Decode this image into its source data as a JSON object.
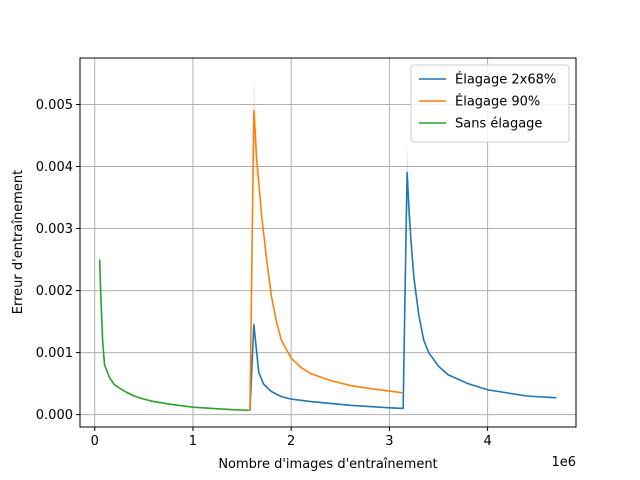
{
  "chart_data": {
    "type": "line",
    "title": "",
    "xlabel": "Nombre d'images d'entraînement",
    "ylabel": "Erreur d'entraînement",
    "x_offset_label": "1e6",
    "xlim": [
      -0.15,
      4.9
    ],
    "ylim": [
      -0.0002,
      0.00575
    ],
    "x_ticks": [
      0,
      1,
      2,
      3,
      4
    ],
    "x_tick_labels": [
      "0",
      "1",
      "2",
      "3",
      "4"
    ],
    "y_ticks": [
      0.0,
      0.001,
      0.002,
      0.003,
      0.004,
      0.005
    ],
    "y_tick_labels": [
      "0.000",
      "0.001",
      "0.002",
      "0.003",
      "0.004",
      "0.005"
    ],
    "grid": true,
    "legend_position": "top-right",
    "series": [
      {
        "name": "Élagage 2x68%",
        "color": "#1f77b4",
        "x": [
          1.58,
          1.62,
          1.67,
          1.72,
          1.8,
          1.9,
          2.0,
          2.2,
          2.4,
          2.6,
          2.8,
          3.0,
          3.14,
          3.18,
          3.2,
          3.22,
          3.25,
          3.3,
          3.35,
          3.4,
          3.5,
          3.6,
          3.8,
          4.0,
          4.2,
          4.4,
          4.6,
          4.7
        ],
        "y": [
          6e-05,
          0.00145,
          0.00068,
          0.00049,
          0.00037,
          0.00029,
          0.00025,
          0.00021,
          0.00018,
          0.00015,
          0.00013,
          0.00011,
          0.0001,
          0.0039,
          0.0033,
          0.0028,
          0.0022,
          0.0016,
          0.0012,
          0.001,
          0.00078,
          0.00064,
          0.0005,
          0.0004,
          0.00035,
          0.0003,
          0.00028,
          0.00027
        ]
      },
      {
        "name": "Élagage 90%",
        "color": "#ff7f0e",
        "x": [
          1.58,
          1.62,
          1.65,
          1.7,
          1.75,
          1.8,
          1.85,
          1.9,
          2.0,
          2.1,
          2.2,
          2.4,
          2.6,
          2.8,
          3.0,
          3.14
        ],
        "y": [
          6e-05,
          0.0049,
          0.0041,
          0.0032,
          0.0025,
          0.0019,
          0.0015,
          0.0012,
          0.00091,
          0.00076,
          0.00066,
          0.00055,
          0.00047,
          0.00042,
          0.00038,
          0.00035
        ]
      },
      {
        "name": "Sans élagage",
        "color": "#2ca02c",
        "x": [
          0.05,
          0.06,
          0.08,
          0.1,
          0.15,
          0.2,
          0.3,
          0.4,
          0.5,
          0.6,
          0.8,
          1.0,
          1.2,
          1.4,
          1.57
        ],
        "y": [
          0.0025,
          0.002,
          0.0012,
          0.0008,
          0.0006,
          0.00048,
          0.00038,
          0.0003,
          0.00025,
          0.00021,
          0.00016,
          0.00012,
          0.0001,
          8e-05,
          7e-05
        ]
      }
    ]
  }
}
